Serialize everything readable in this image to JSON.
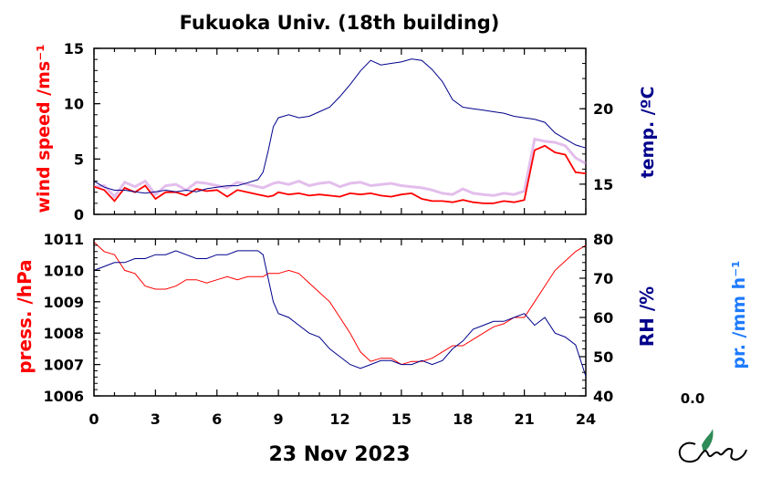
{
  "title": "Fukuoka Univ. (18th building)",
  "date_label": "23 Nov 2023",
  "logo_text": "CMES",
  "colors": {
    "red": "#ff0000",
    "navy": "#00008b",
    "purple": "#cc88dd",
    "blue_label": "#1e7bff",
    "logo_green": "#2e8b57"
  },
  "chart_data": [
    {
      "type": "line",
      "panel": "top",
      "x": [
        0,
        0.5,
        1,
        1.5,
        2,
        2.5,
        3,
        3.5,
        4,
        4.5,
        5,
        5.5,
        6,
        6.5,
        7,
        7.5,
        8,
        8.25,
        8.5,
        8.75,
        9,
        9.5,
        10,
        10.5,
        11,
        11.5,
        12,
        12.5,
        13,
        13.5,
        14,
        14.5,
        15,
        15.5,
        16,
        16.5,
        17,
        17.5,
        18,
        18.5,
        19,
        19.5,
        20,
        20.5,
        21,
        21.5,
        22,
        22.5,
        23,
        23.5,
        24
      ],
      "x_ticks": [
        "0",
        "3",
        "6",
        "9",
        "12",
        "15",
        "18",
        "21",
        "24"
      ],
      "xlim": [
        0,
        24
      ],
      "series": [
        {
          "axis": "left",
          "color": "#ff0000",
          "values": [
            2.5,
            2.2,
            1.2,
            2.4,
            2.0,
            2.6,
            1.4,
            2.0,
            2.0,
            1.7,
            2.3,
            2.1,
            2.2,
            1.6,
            2.2,
            2.0,
            1.8,
            1.7,
            1.6,
            1.7,
            2.0,
            1.8,
            1.9,
            1.7,
            1.8,
            1.7,
            1.6,
            1.9,
            1.8,
            1.9,
            1.7,
            1.6,
            1.8,
            1.9,
            1.4,
            1.2,
            1.2,
            1.1,
            1.3,
            1.1,
            1.0,
            1.0,
            1.2,
            1.1,
            1.3,
            5.8,
            6.2,
            5.6,
            5.4,
            3.8,
            3.7
          ]
        },
        {
          "axis": "left",
          "color": "#cc88dd",
          "values": [
            2.5,
            2.6,
            1.6,
            2.9,
            2.5,
            3.0,
            1.8,
            2.6,
            2.7,
            2.2,
            2.9,
            2.8,
            2.6,
            2.4,
            2.9,
            2.7,
            2.5,
            2.4,
            2.6,
            2.8,
            2.9,
            2.7,
            3.0,
            2.6,
            2.8,
            2.9,
            2.5,
            2.8,
            2.9,
            2.6,
            2.7,
            2.8,
            2.6,
            2.5,
            2.4,
            2.2,
            1.9,
            1.8,
            2.3,
            1.9,
            1.8,
            1.7,
            1.9,
            1.8,
            2.1,
            6.8,
            6.6,
            6.5,
            6.2,
            5.1,
            4.6
          ]
        },
        {
          "axis": "right",
          "color": "#00008b",
          "values": [
            15.2,
            14.8,
            14.6,
            14.6,
            14.5,
            14.4,
            14.5,
            14.6,
            14.5,
            14.6,
            14.5,
            14.7,
            14.8,
            14.9,
            14.9,
            15.1,
            15.3,
            15.8,
            17.2,
            18.8,
            19.4,
            19.6,
            19.4,
            19.5,
            19.8,
            20.1,
            20.8,
            21.6,
            22.5,
            23.2,
            22.9,
            23.0,
            23.1,
            23.3,
            23.2,
            22.6,
            21.8,
            20.6,
            20.1,
            20.0,
            19.9,
            19.8,
            19.7,
            19.5,
            19.4,
            19.3,
            19.1,
            18.4,
            18.0,
            17.6,
            17.4
          ]
        }
      ],
      "ylabel_left": "wind speed /ms⁻¹",
      "ylabel_right": "temp. /ºC",
      "ylim_left": [
        0,
        15
      ],
      "ylim_right": [
        13,
        24
      ],
      "yticks_left": [
        "0",
        "5",
        "10",
        "15"
      ],
      "yticks_right": [
        "15",
        "20"
      ]
    },
    {
      "type": "line",
      "panel": "bottom",
      "x": [
        0,
        0.5,
        1,
        1.5,
        2,
        2.5,
        3,
        3.5,
        4,
        4.5,
        5,
        5.5,
        6,
        6.5,
        7,
        7.5,
        8,
        8.25,
        8.5,
        8.75,
        9,
        9.5,
        10,
        10.5,
        11,
        11.5,
        12,
        12.5,
        13,
        13.5,
        14,
        14.5,
        15,
        15.5,
        16,
        16.5,
        17,
        17.5,
        18,
        18.5,
        19,
        19.5,
        20,
        20.5,
        21,
        21.5,
        22,
        22.5,
        23,
        23.5,
        24
      ],
      "x_ticks": [
        "0",
        "3",
        "6",
        "9",
        "12",
        "15",
        "18",
        "21",
        "24"
      ],
      "xlim": [
        0,
        24
      ],
      "series": [
        {
          "axis": "left",
          "color": "#ff0000",
          "values": [
            1010.9,
            1010.6,
            1010.5,
            1010.0,
            1009.9,
            1009.5,
            1009.4,
            1009.4,
            1009.5,
            1009.7,
            1009.7,
            1009.6,
            1009.7,
            1009.8,
            1009.7,
            1009.8,
            1009.8,
            1009.8,
            1009.9,
            1009.9,
            1009.9,
            1010.0,
            1009.9,
            1009.6,
            1009.3,
            1009.0,
            1008.5,
            1008.0,
            1007.4,
            1007.1,
            1007.2,
            1007.2,
            1007.0,
            1007.1,
            1007.1,
            1007.2,
            1007.4,
            1007.6,
            1007.6,
            1007.8,
            1008.0,
            1008.2,
            1008.3,
            1008.5,
            1008.5,
            1009.0,
            1009.5,
            1010.0,
            1010.3,
            1010.6,
            1010.8
          ]
        },
        {
          "axis": "right",
          "color": "#00008b",
          "values": [
            72,
            73,
            74,
            74,
            75,
            75,
            76,
            76,
            77,
            76,
            75,
            75,
            76,
            76,
            77,
            77,
            77,
            76,
            70,
            64,
            61,
            60,
            58,
            56,
            55,
            52,
            50,
            48,
            47,
            48,
            49,
            49,
            48,
            48,
            49,
            48,
            49,
            52,
            54,
            57,
            58,
            59,
            59,
            60,
            61,
            58,
            60,
            56,
            55,
            53,
            45
          ]
        }
      ],
      "ylabel_left": "press. /hPa",
      "ylabel_right": "RH /%",
      "ylim_left": [
        1006,
        1011
      ],
      "ylim_right": [
        40,
        80
      ],
      "yticks_left": [
        "1006",
        "1007",
        "1008",
        "1009",
        "1010",
        "1011"
      ],
      "yticks_right": [
        "40",
        "50",
        "60",
        "70",
        "80"
      ]
    },
    {
      "type": "bar",
      "panel": "precipitation",
      "ylabel": "pr. /mm h⁻¹",
      "value_label": "0.0",
      "values": [
        0.0
      ]
    }
  ]
}
